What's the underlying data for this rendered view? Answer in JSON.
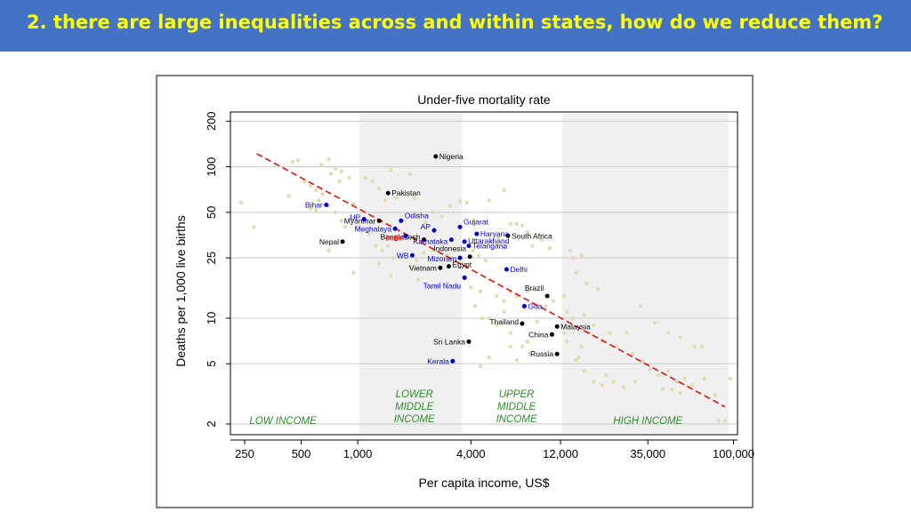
{
  "slide": {
    "title": "2.  there are large inequalities across and within states, how do we reduce them?"
  },
  "colors": {
    "header_bg": "#4472c4",
    "title_text": "#ffff00",
    "band_shade": "#f0f0f0",
    "country_point": "#000000",
    "state_point": "#0000cc",
    "india_label": "#ff0000",
    "background_point": "#e2dcb0",
    "trend_line": "#e01010",
    "income_label": "#2e8b2e"
  },
  "chart_data": {
    "type": "scatter",
    "title": "Under-five mortality rate",
    "xlabel": "Per capita income, US$",
    "ylabel": "Deaths per 1,000 live births",
    "x_scale": "log",
    "y_scale": "log",
    "xlim": [
      210,
      105000
    ],
    "ylim": [
      1.7,
      230
    ],
    "x_ticks": [
      {
        "value": 250,
        "label": "250"
      },
      {
        "value": 500,
        "label": "500"
      },
      {
        "value": 1000,
        "label": "1,000"
      },
      {
        "value": 4000,
        "label": "4,000"
      },
      {
        "value": 12000,
        "label": "12,000"
      },
      {
        "value": 35000,
        "label": "35,000"
      },
      {
        "value": 100000,
        "label": "100,000"
      }
    ],
    "y_ticks": [
      {
        "value": 2,
        "label": "2"
      },
      {
        "value": 5,
        "label": "5"
      },
      {
        "value": 10,
        "label": "10"
      },
      {
        "value": 25,
        "label": "25"
      },
      {
        "value": 50,
        "label": "50"
      },
      {
        "value": 100,
        "label": "100"
      },
      {
        "value": 200,
        "label": "200"
      }
    ],
    "grid": true,
    "income_bands": [
      {
        "label": "LOW INCOME",
        "from": 210,
        "to": 1000,
        "shaded": false
      },
      {
        "label": "LOWER\nMIDDLE\nINCOME",
        "from": 1000,
        "to": 4000,
        "shaded": true
      },
      {
        "label": "UPPER\nMIDDLE\nINCOME",
        "from": 4000,
        "to": 12000,
        "shaded": false
      },
      {
        "label": "HIGH INCOME",
        "from": 12000,
        "to": 105000,
        "shaded": true
      }
    ],
    "trend_line": {
      "from": [
        290,
        122
      ],
      "to": [
        90000,
        2.6
      ]
    },
    "countries": [
      {
        "name": "Nigeria",
        "x": 2600,
        "y": 117
      },
      {
        "name": "Pakistan",
        "x": 1450,
        "y": 67
      },
      {
        "name": "Myanmar",
        "x": 1300,
        "y": 44
      },
      {
        "name": "Bangladesh",
        "x": 2250,
        "y": 33
      },
      {
        "name": "Nepal",
        "x": 830,
        "y": 32
      },
      {
        "name": "South Africa",
        "x": 6300,
        "y": 35
      },
      {
        "name": "Indonesia",
        "x": 3950,
        "y": 25.5
      },
      {
        "name": "Egypt",
        "x": 3050,
        "y": 22
      },
      {
        "name": "Vietnam",
        "x": 2750,
        "y": 21.5
      },
      {
        "name": "Brazil",
        "x": 10200,
        "y": 14
      },
      {
        "name": "Thailand",
        "x": 7500,
        "y": 9.2
      },
      {
        "name": "Malaysia",
        "x": 11500,
        "y": 8.8
      },
      {
        "name": "China",
        "x": 10800,
        "y": 7.8
      },
      {
        "name": "Sri Lanka",
        "x": 3900,
        "y": 7
      },
      {
        "name": "Russia",
        "x": 11500,
        "y": 5.8
      }
    ],
    "indian_states": [
      {
        "name": "Bihar",
        "x": 680,
        "y": 56
      },
      {
        "name": "UP",
        "x": 1080,
        "y": 45
      },
      {
        "name": "Odisha",
        "x": 1700,
        "y": 44
      },
      {
        "name": "Meghalaya",
        "x": 1580,
        "y": 39
      },
      {
        "name": "India",
        "x": 1800,
        "y": 35
      },
      {
        "name": "AP",
        "x": 2550,
        "y": 38
      },
      {
        "name": "Gujarat",
        "x": 3500,
        "y": 40
      },
      {
        "name": "Haryana",
        "x": 4300,
        "y": 36
      },
      {
        "name": "Karnataka",
        "x": 3150,
        "y": 33
      },
      {
        "name": "Uttarakhand",
        "x": 3700,
        "y": 32
      },
      {
        "name": "Telangana",
        "x": 3900,
        "y": 30
      },
      {
        "name": "WB",
        "x": 1950,
        "y": 26
      },
      {
        "name": "Mizoram",
        "x": 3500,
        "y": 25
      },
      {
        "name": "Delhi",
        "x": 6200,
        "y": 21
      },
      {
        "name": "Tamil Nadu",
        "x": 3700,
        "y": 18.5
      },
      {
        "name": "Goa",
        "x": 7700,
        "y": 12
      },
      {
        "name": "Kerala",
        "x": 3200,
        "y": 5.2
      }
    ],
    "other_countries": [
      [
        240,
        58
      ],
      [
        280,
        40
      ],
      [
        430,
        64
      ],
      [
        450,
        108
      ],
      [
        480,
        110
      ],
      [
        520,
        80
      ],
      [
        560,
        75
      ],
      [
        600,
        70
      ],
      [
        620,
        60
      ],
      [
        640,
        103
      ],
      [
        650,
        66
      ],
      [
        700,
        112
      ],
      [
        720,
        90
      ],
      [
        760,
        97
      ],
      [
        800,
        80
      ],
      [
        820,
        93
      ],
      [
        560,
        53
      ],
      [
        600,
        52
      ],
      [
        700,
        55
      ],
      [
        760,
        50
      ],
      [
        900,
        85
      ],
      [
        950,
        57
      ],
      [
        820,
        44
      ],
      [
        860,
        40
      ],
      [
        950,
        46
      ],
      [
        1000,
        40
      ],
      [
        1100,
        85
      ],
      [
        1200,
        80
      ],
      [
        1300,
        72
      ],
      [
        1400,
        60
      ],
      [
        1500,
        95
      ],
      [
        1600,
        62
      ],
      [
        1900,
        89
      ],
      [
        2000,
        62
      ],
      [
        2100,
        48
      ],
      [
        2300,
        43
      ],
      [
        2500,
        50
      ],
      [
        2800,
        47
      ],
      [
        3100,
        55
      ],
      [
        3500,
        59
      ],
      [
        3800,
        58
      ],
      [
        4100,
        44
      ],
      [
        1150,
        36
      ],
      [
        1250,
        30
      ],
      [
        1350,
        28
      ],
      [
        1450,
        30
      ],
      [
        1550,
        25
      ],
      [
        1700,
        25
      ],
      [
        1900,
        22
      ],
      [
        2050,
        24
      ],
      [
        2250,
        27
      ],
      [
        2500,
        28
      ],
      [
        2750,
        25
      ],
      [
        3000,
        26
      ],
      [
        3300,
        28
      ],
      [
        3600,
        23
      ],
      [
        3800,
        22
      ],
      [
        4100,
        28
      ],
      [
        4400,
        26
      ],
      [
        4800,
        24
      ],
      [
        5200,
        32
      ],
      [
        5600,
        34
      ],
      [
        6000,
        29
      ],
      [
        6500,
        42
      ],
      [
        7000,
        42
      ],
      [
        7500,
        41
      ],
      [
        8000,
        37
      ],
      [
        8500,
        30
      ],
      [
        9500,
        33
      ],
      [
        10500,
        29
      ],
      [
        13500,
        28
      ],
      [
        15500,
        26
      ],
      [
        14000,
        25
      ],
      [
        6000,
        70
      ],
      [
        5000,
        60
      ],
      [
        700,
        28
      ],
      [
        950,
        20
      ],
      [
        1300,
        23
      ],
      [
        1500,
        19
      ],
      [
        2100,
        18
      ],
      [
        2600,
        16
      ],
      [
        3000,
        17
      ],
      [
        3400,
        16
      ],
      [
        4000,
        16
      ],
      [
        4500,
        15
      ],
      [
        5000,
        18
      ],
      [
        5500,
        14
      ],
      [
        6000,
        13
      ],
      [
        6500,
        15
      ],
      [
        7000,
        14
      ],
      [
        8000,
        15
      ],
      [
        9000,
        12
      ],
      [
        10000,
        12
      ],
      [
        11000,
        13
      ],
      [
        12500,
        14
      ],
      [
        13000,
        11
      ],
      [
        14000,
        10
      ],
      [
        16000,
        10.5
      ],
      [
        18000,
        9
      ],
      [
        22000,
        8
      ],
      [
        27000,
        8
      ],
      [
        32000,
        12
      ],
      [
        38000,
        9.3
      ],
      [
        45000,
        8
      ],
      [
        52000,
        7.5
      ],
      [
        62000,
        6.5
      ],
      [
        68000,
        6.5
      ],
      [
        14500,
        20
      ],
      [
        16500,
        17
      ],
      [
        19000,
        15.5
      ],
      [
        15500,
        6.5
      ],
      [
        17000,
        8
      ],
      [
        20000,
        7
      ],
      [
        24000,
        6.5
      ],
      [
        29000,
        5.8
      ],
      [
        33000,
        5.2
      ],
      [
        36000,
        4.6
      ],
      [
        40000,
        4.2
      ],
      [
        45000,
        4.5
      ],
      [
        50000,
        3.8
      ],
      [
        55000,
        4
      ],
      [
        60000,
        3.6
      ],
      [
        70000,
        4
      ],
      [
        80000,
        3.1
      ],
      [
        96000,
        4
      ],
      [
        42000,
        3.4
      ],
      [
        47000,
        3.4
      ],
      [
        52000,
        3.2
      ],
      [
        30000,
        3.8
      ],
      [
        26000,
        3.5
      ],
      [
        23000,
        3.8
      ],
      [
        20000,
        3.6
      ],
      [
        18000,
        3.8
      ],
      [
        21000,
        4.2
      ],
      [
        16000,
        4.5
      ],
      [
        15000,
        5.5
      ],
      [
        13000,
        7
      ],
      [
        12500,
        8
      ],
      [
        14500,
        5.3
      ],
      [
        90000,
        2.1
      ],
      [
        83000,
        2.1
      ],
      [
        7000,
        5.3
      ],
      [
        7500,
        6.5
      ],
      [
        8200,
        5.8
      ],
      [
        8000,
        7
      ],
      [
        5000,
        10
      ],
      [
        5500,
        9
      ],
      [
        6000,
        11
      ],
      [
        6500,
        8
      ],
      [
        9000,
        9.5
      ],
      [
        6200,
        3.1
      ],
      [
        6500,
        6.5
      ],
      [
        4500,
        4.8
      ],
      [
        5000,
        5.5
      ],
      [
        4200,
        12
      ],
      [
        4600,
        10
      ]
    ]
  }
}
